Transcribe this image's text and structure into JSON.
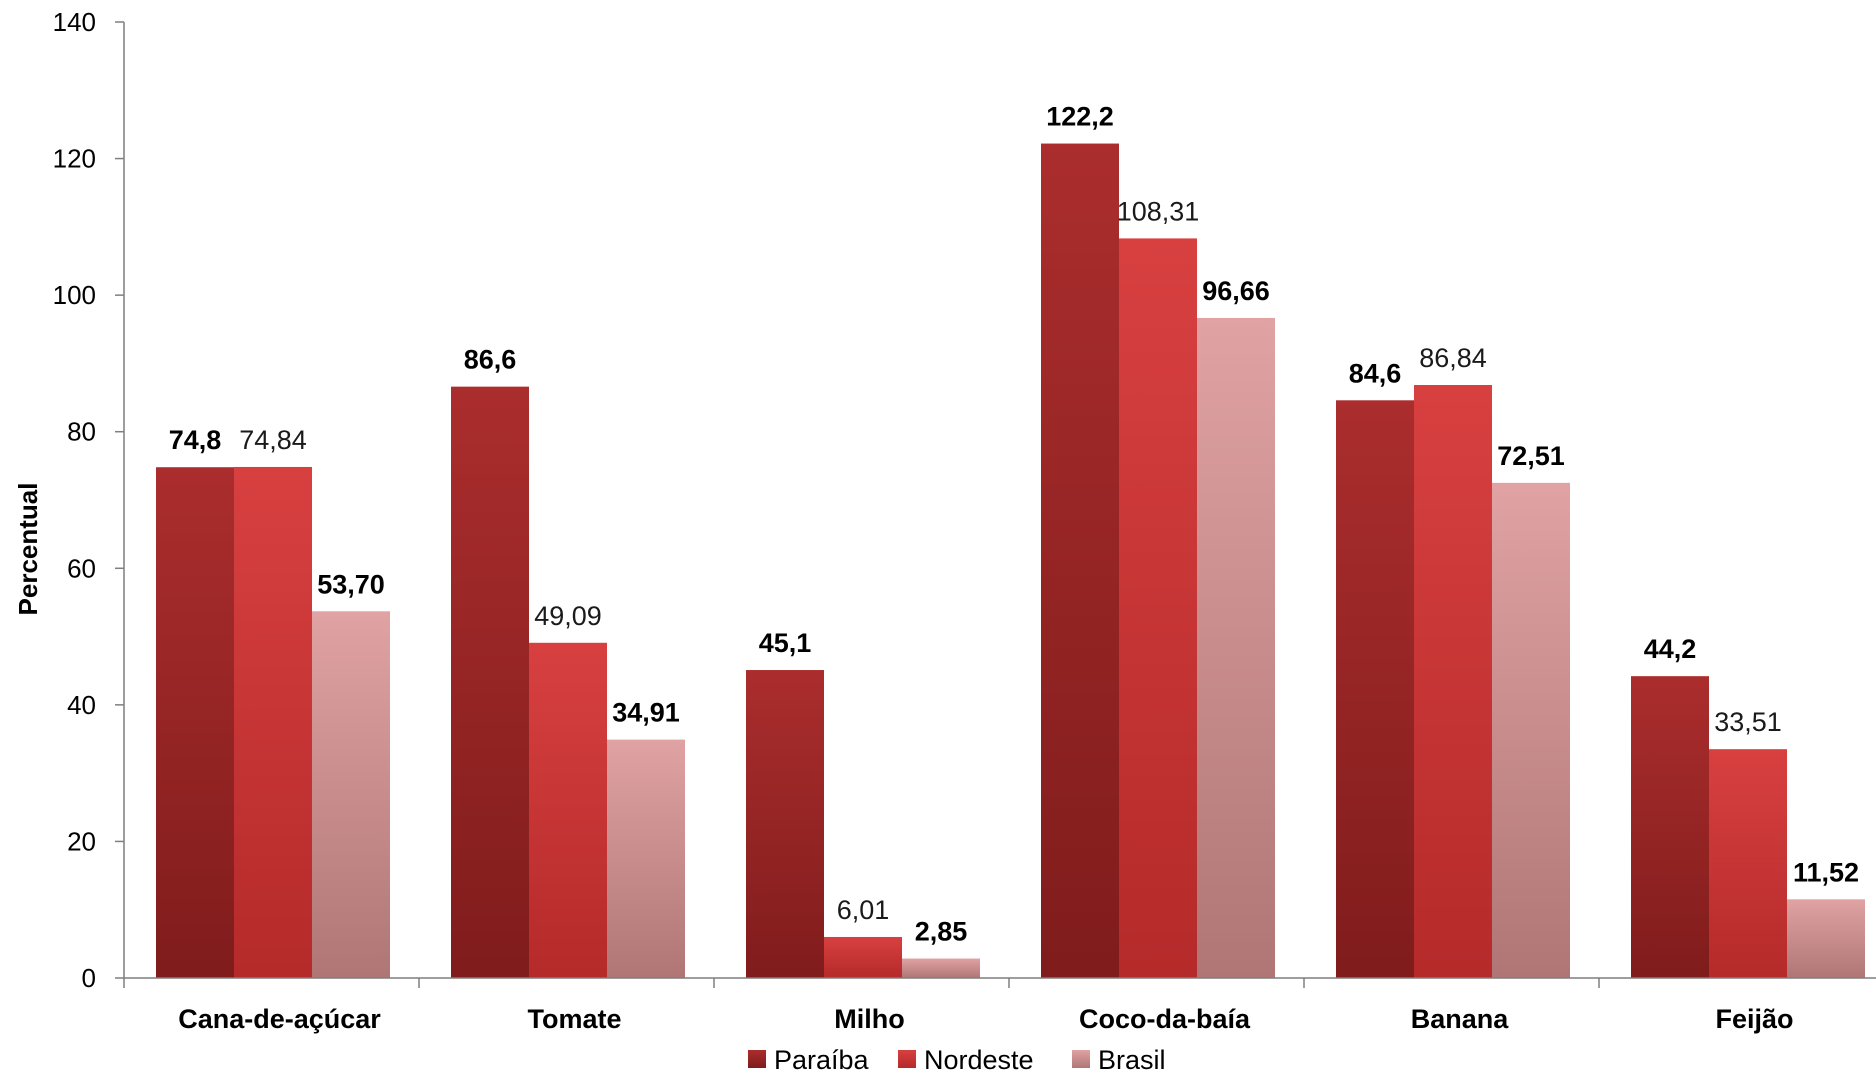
{
  "chart_data": {
    "type": "bar",
    "title": "",
    "xlabel": "",
    "ylabel": "Percentual",
    "ylim": [
      0,
      140
    ],
    "yticks": [
      "0",
      "20",
      "40",
      "60",
      "80",
      "100",
      "120",
      "140"
    ],
    "grid": false,
    "legend_position": "bottom",
    "categories": [
      "Cana-de-açúcar",
      "Tomate",
      "Milho",
      "Coco-da-baía",
      "Banana",
      "Feijão"
    ],
    "series": [
      {
        "name": "Paraíba",
        "color": "#9b2424",
        "values": [
          74.8,
          86.6,
          45.1,
          122.2,
          84.6,
          44.2
        ],
        "labels": [
          "74,8",
          "86,6",
          "45,1",
          "122,2",
          "84,6",
          "44,2"
        ],
        "label_bold": [
          true,
          true,
          true,
          true,
          true,
          true
        ]
      },
      {
        "name": "Nordeste",
        "color": "#d03a3a",
        "values": [
          74.84,
          49.09,
          6.01,
          108.31,
          86.84,
          33.51
        ],
        "labels": [
          "74,84",
          "49,09",
          "6,01",
          "108,31",
          "86,84",
          "33,51"
        ],
        "label_bold": [
          false,
          false,
          false,
          false,
          false,
          false
        ]
      },
      {
        "name": "Brasil",
        "color": "#d99a9a",
        "values": [
          53.7,
          34.91,
          2.85,
          96.66,
          72.51,
          11.52
        ],
        "labels": [
          "53,70",
          "34,91",
          "2,85",
          "96,66",
          "72,51",
          "11,52"
        ],
        "label_bold": [
          true,
          true,
          true,
          true,
          true,
          true
        ]
      }
    ]
  }
}
